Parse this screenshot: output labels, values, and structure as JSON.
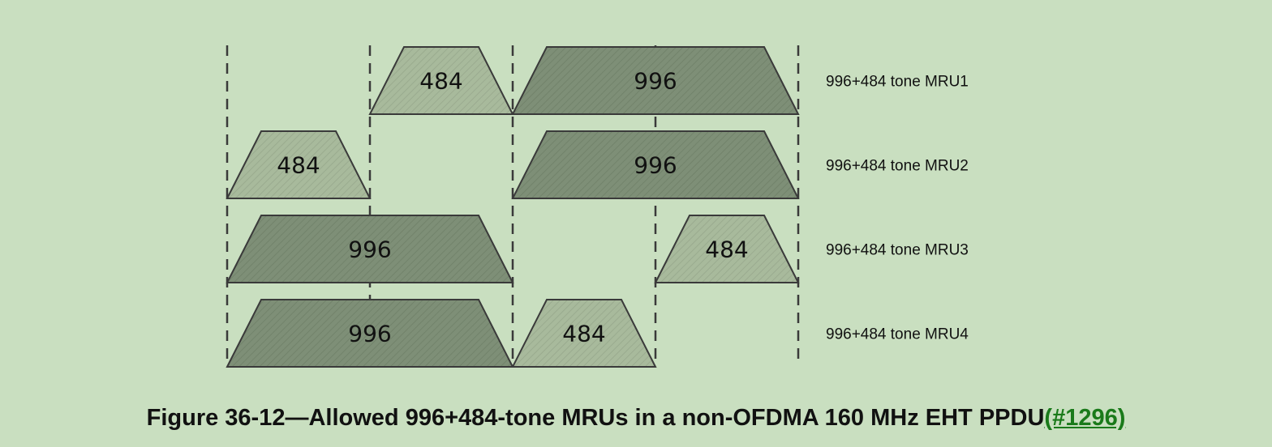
{
  "diagram": {
    "colors": {
      "background": "#c9dfc0",
      "ru484_fill": "#a8ba9c",
      "ru996_fill": "#7e8f77",
      "stroke": "#3a3a3a",
      "caption_link": "#1a7a1a"
    },
    "rows": [
      {
        "label": "996+484 tone MRU1",
        "blocks": [
          {
            "size": "484",
            "start": 1,
            "span": 1
          },
          {
            "size": "996",
            "start": 2,
            "span": 2
          }
        ]
      },
      {
        "label": "996+484 tone MRU2",
        "blocks": [
          {
            "size": "484",
            "start": 0,
            "span": 1
          },
          {
            "size": "996",
            "start": 2,
            "span": 2
          }
        ]
      },
      {
        "label": "996+484 tone MRU3",
        "blocks": [
          {
            "size": "996",
            "start": 0,
            "span": 2
          },
          {
            "size": "484",
            "start": 3,
            "span": 1
          }
        ]
      },
      {
        "label": "996+484 tone MRU4",
        "blocks": [
          {
            "size": "996",
            "start": 0,
            "span": 2
          },
          {
            "size": "484",
            "start": 2,
            "span": 1
          }
        ]
      }
    ]
  },
  "caption": {
    "text": "Figure 36-12—Allowed 996+484-tone MRUs in a non-OFDMA 160 MHz EHT PPDU",
    "ref": "(#1296)"
  }
}
